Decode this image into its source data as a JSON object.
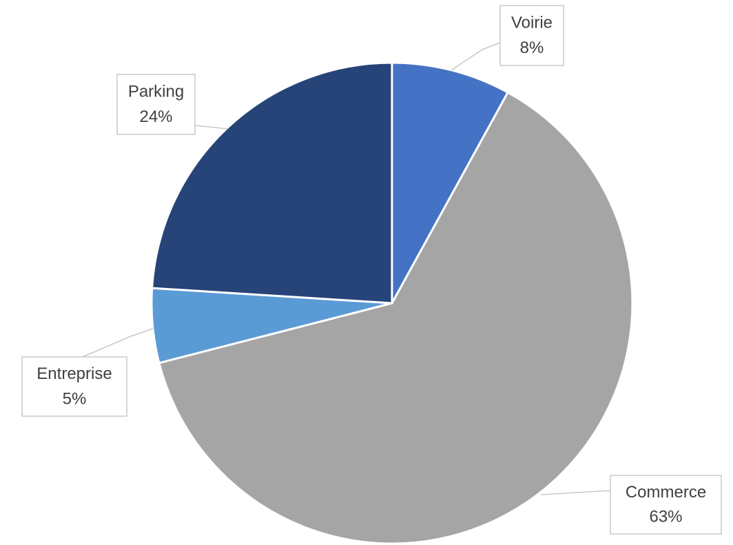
{
  "chart_data": {
    "type": "pie",
    "categories": [
      "Voirie",
      "Commerce",
      "Entreprise",
      "Parking"
    ],
    "values": [
      8,
      63,
      5,
      24
    ],
    "value_labels": [
      "8%",
      "63%",
      "5%",
      "24%"
    ],
    "colors": [
      "#4472c4",
      "#a5a5a5",
      "#5b9bd5",
      "#264478"
    ]
  }
}
